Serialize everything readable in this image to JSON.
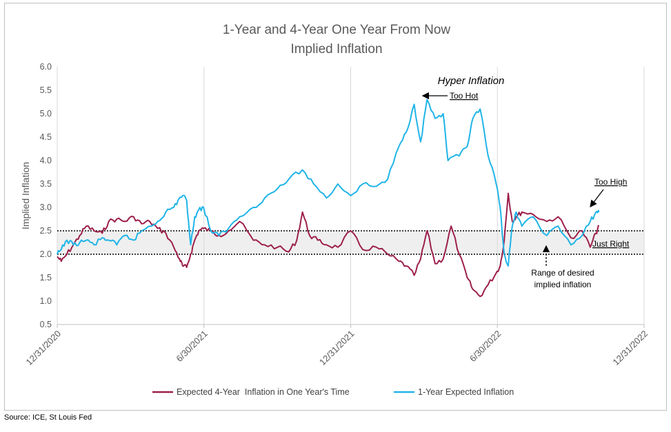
{
  "source": "Source: ICE, St Louis Fed",
  "chart_data": {
    "type": "line",
    "title_line1": "1-Year and 4-Year One Year From Now",
    "title_line2": "Implied Inflation",
    "ylabel": "Implied Inflation",
    "ylim": [
      0.5,
      6.0
    ],
    "yticks": [
      "6.0",
      "5.5",
      "5.0",
      "4.5",
      "4.0",
      "3.5",
      "3.0",
      "2.5",
      "2.0",
      "1.5",
      "1.0",
      "0.5"
    ],
    "xticks": [
      "12/31/2020",
      "6/30/2021",
      "12/31/2021",
      "6/30/2022",
      "12/31/2022"
    ],
    "grid": "vertical",
    "legend_position": "bottom",
    "reference_lines": [
      2.5,
      2.0
    ],
    "annotations": {
      "hyper": "Hyper Inflation",
      "too_hot": "Too Hot",
      "too_high": "Too High",
      "just_right": "Just Right",
      "range_line1": "Range of desired",
      "range_line2": "implied inflation"
    },
    "series": [
      {
        "name": "Expected 4-Year  Inflation in One Year's Time",
        "color": "#9c1f4c",
        "x": [
          "2020-12-31",
          "2021-01-05",
          "2021-01-12",
          "2021-01-20",
          "2021-01-28",
          "2021-02-05",
          "2021-02-15",
          "2021-02-25",
          "2021-03-05",
          "2021-03-15",
          "2021-03-25",
          "2021-04-05",
          "2021-04-15",
          "2021-04-25",
          "2021-05-05",
          "2021-05-15",
          "2021-05-25",
          "2021-06-01",
          "2021-06-05",
          "2021-06-10",
          "2021-06-15",
          "2021-06-20",
          "2021-06-25",
          "2021-07-01",
          "2021-07-10",
          "2021-07-20",
          "2021-08-01",
          "2021-08-15",
          "2021-09-01",
          "2021-09-15",
          "2021-10-01",
          "2021-10-15",
          "2021-10-25",
          "2021-11-01",
          "2021-11-10",
          "2021-11-20",
          "2021-12-01",
          "2021-12-15",
          "2021-12-31",
          "2022-01-15",
          "2022-02-01",
          "2022-02-15",
          "2022-03-01",
          "2022-03-10",
          "2022-03-20",
          "2022-03-28",
          "2022-04-05",
          "2022-04-15",
          "2022-04-25",
          "2022-05-05",
          "2022-05-15",
          "2022-05-25",
          "2022-06-01",
          "2022-06-10",
          "2022-06-20",
          "2022-06-30",
          "2022-07-05",
          "2022-07-10",
          "2022-07-15",
          "2022-07-20",
          "2022-07-25",
          "2022-08-01",
          "2022-08-15",
          "2022-09-01",
          "2022-09-15",
          "2022-10-01",
          "2022-10-15",
          "2022-10-25",
          "2022-11-01",
          "2022-11-05"
        ],
        "values": [
          1.95,
          1.85,
          2.0,
          2.2,
          2.4,
          2.6,
          2.5,
          2.45,
          2.7,
          2.75,
          2.7,
          2.8,
          2.65,
          2.7,
          2.55,
          2.45,
          2.15,
          1.9,
          1.75,
          1.72,
          2.0,
          2.3,
          2.5,
          2.55,
          2.5,
          2.4,
          2.5,
          2.7,
          2.3,
          2.2,
          2.15,
          2.05,
          2.3,
          2.9,
          2.4,
          2.3,
          2.2,
          2.15,
          2.5,
          2.1,
          2.15,
          2.0,
          1.85,
          1.75,
          1.55,
          1.9,
          2.5,
          1.8,
          1.9,
          2.6,
          2.0,
          1.5,
          1.25,
          1.1,
          1.35,
          1.6,
          1.75,
          2.3,
          3.3,
          2.7,
          2.8,
          2.9,
          2.85,
          2.7,
          2.8,
          2.35,
          2.5,
          2.15,
          2.45,
          2.6
        ]
      },
      {
        "name": "1-Year Expected Inflation",
        "color": "#1fb4e8",
        "x": [
          "2020-12-31",
          "2021-01-05",
          "2021-01-12",
          "2021-01-20",
          "2021-01-28",
          "2021-02-05",
          "2021-02-15",
          "2021-02-25",
          "2021-03-05",
          "2021-03-15",
          "2021-03-25",
          "2021-04-05",
          "2021-04-15",
          "2021-04-25",
          "2021-05-05",
          "2021-05-15",
          "2021-05-25",
          "2021-06-01",
          "2021-06-05",
          "2021-06-10",
          "2021-06-15",
          "2021-06-20",
          "2021-06-25",
          "2021-07-01",
          "2021-07-10",
          "2021-07-20",
          "2021-08-01",
          "2021-08-15",
          "2021-09-01",
          "2021-09-15",
          "2021-10-01",
          "2021-10-15",
          "2021-11-01",
          "2021-11-15",
          "2021-12-01",
          "2021-12-15",
          "2021-12-31",
          "2022-01-15",
          "2022-02-01",
          "2022-02-15",
          "2022-03-01",
          "2022-03-10",
          "2022-03-20",
          "2022-03-28",
          "2022-04-05",
          "2022-04-15",
          "2022-04-25",
          "2022-05-01",
          "2022-05-15",
          "2022-05-25",
          "2022-06-01",
          "2022-06-10",
          "2022-06-20",
          "2022-06-30",
          "2022-07-05",
          "2022-07-10",
          "2022-07-15",
          "2022-07-20",
          "2022-07-25",
          "2022-08-01",
          "2022-08-15",
          "2022-09-01",
          "2022-09-15",
          "2022-10-01",
          "2022-10-15",
          "2022-10-25",
          "2022-11-01",
          "2022-11-05"
        ],
        "values": [
          2.0,
          2.1,
          2.3,
          2.2,
          2.25,
          2.3,
          2.2,
          2.35,
          2.3,
          2.2,
          2.4,
          2.3,
          2.5,
          2.6,
          2.7,
          2.9,
          3.0,
          3.2,
          3.25,
          3.15,
          2.2,
          2.8,
          2.95,
          3.0,
          2.5,
          2.4,
          2.55,
          2.8,
          3.0,
          3.2,
          3.4,
          3.6,
          3.8,
          3.5,
          3.2,
          3.5,
          3.25,
          3.5,
          3.45,
          3.6,
          4.3,
          4.6,
          5.2,
          4.4,
          5.3,
          4.9,
          5.0,
          4.0,
          4.1,
          4.3,
          4.9,
          5.1,
          4.1,
          3.5,
          3.0,
          2.0,
          1.75,
          2.6,
          2.9,
          2.6,
          2.8,
          2.4,
          2.6,
          2.2,
          2.4,
          2.7,
          2.9,
          2.9
        ]
      }
    ]
  }
}
